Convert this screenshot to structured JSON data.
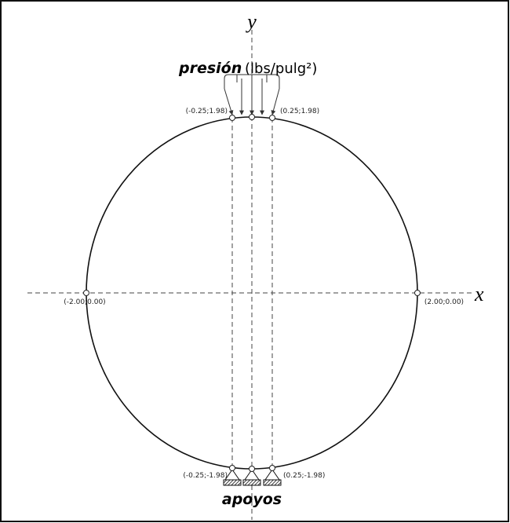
{
  "axes": {
    "x": "x",
    "y": "y"
  },
  "load": {
    "label": "presión",
    "units": "(lbs/pulg²)"
  },
  "supports": {
    "label": "apoyos"
  },
  "points": [
    "(-0.25;1.98)",
    "(0.25;1.98)",
    "(-2.00;0.00)",
    "(2.00;0.00)",
    "(-0.25;-1.98)",
    "(0.25;-1.98)"
  ]
}
